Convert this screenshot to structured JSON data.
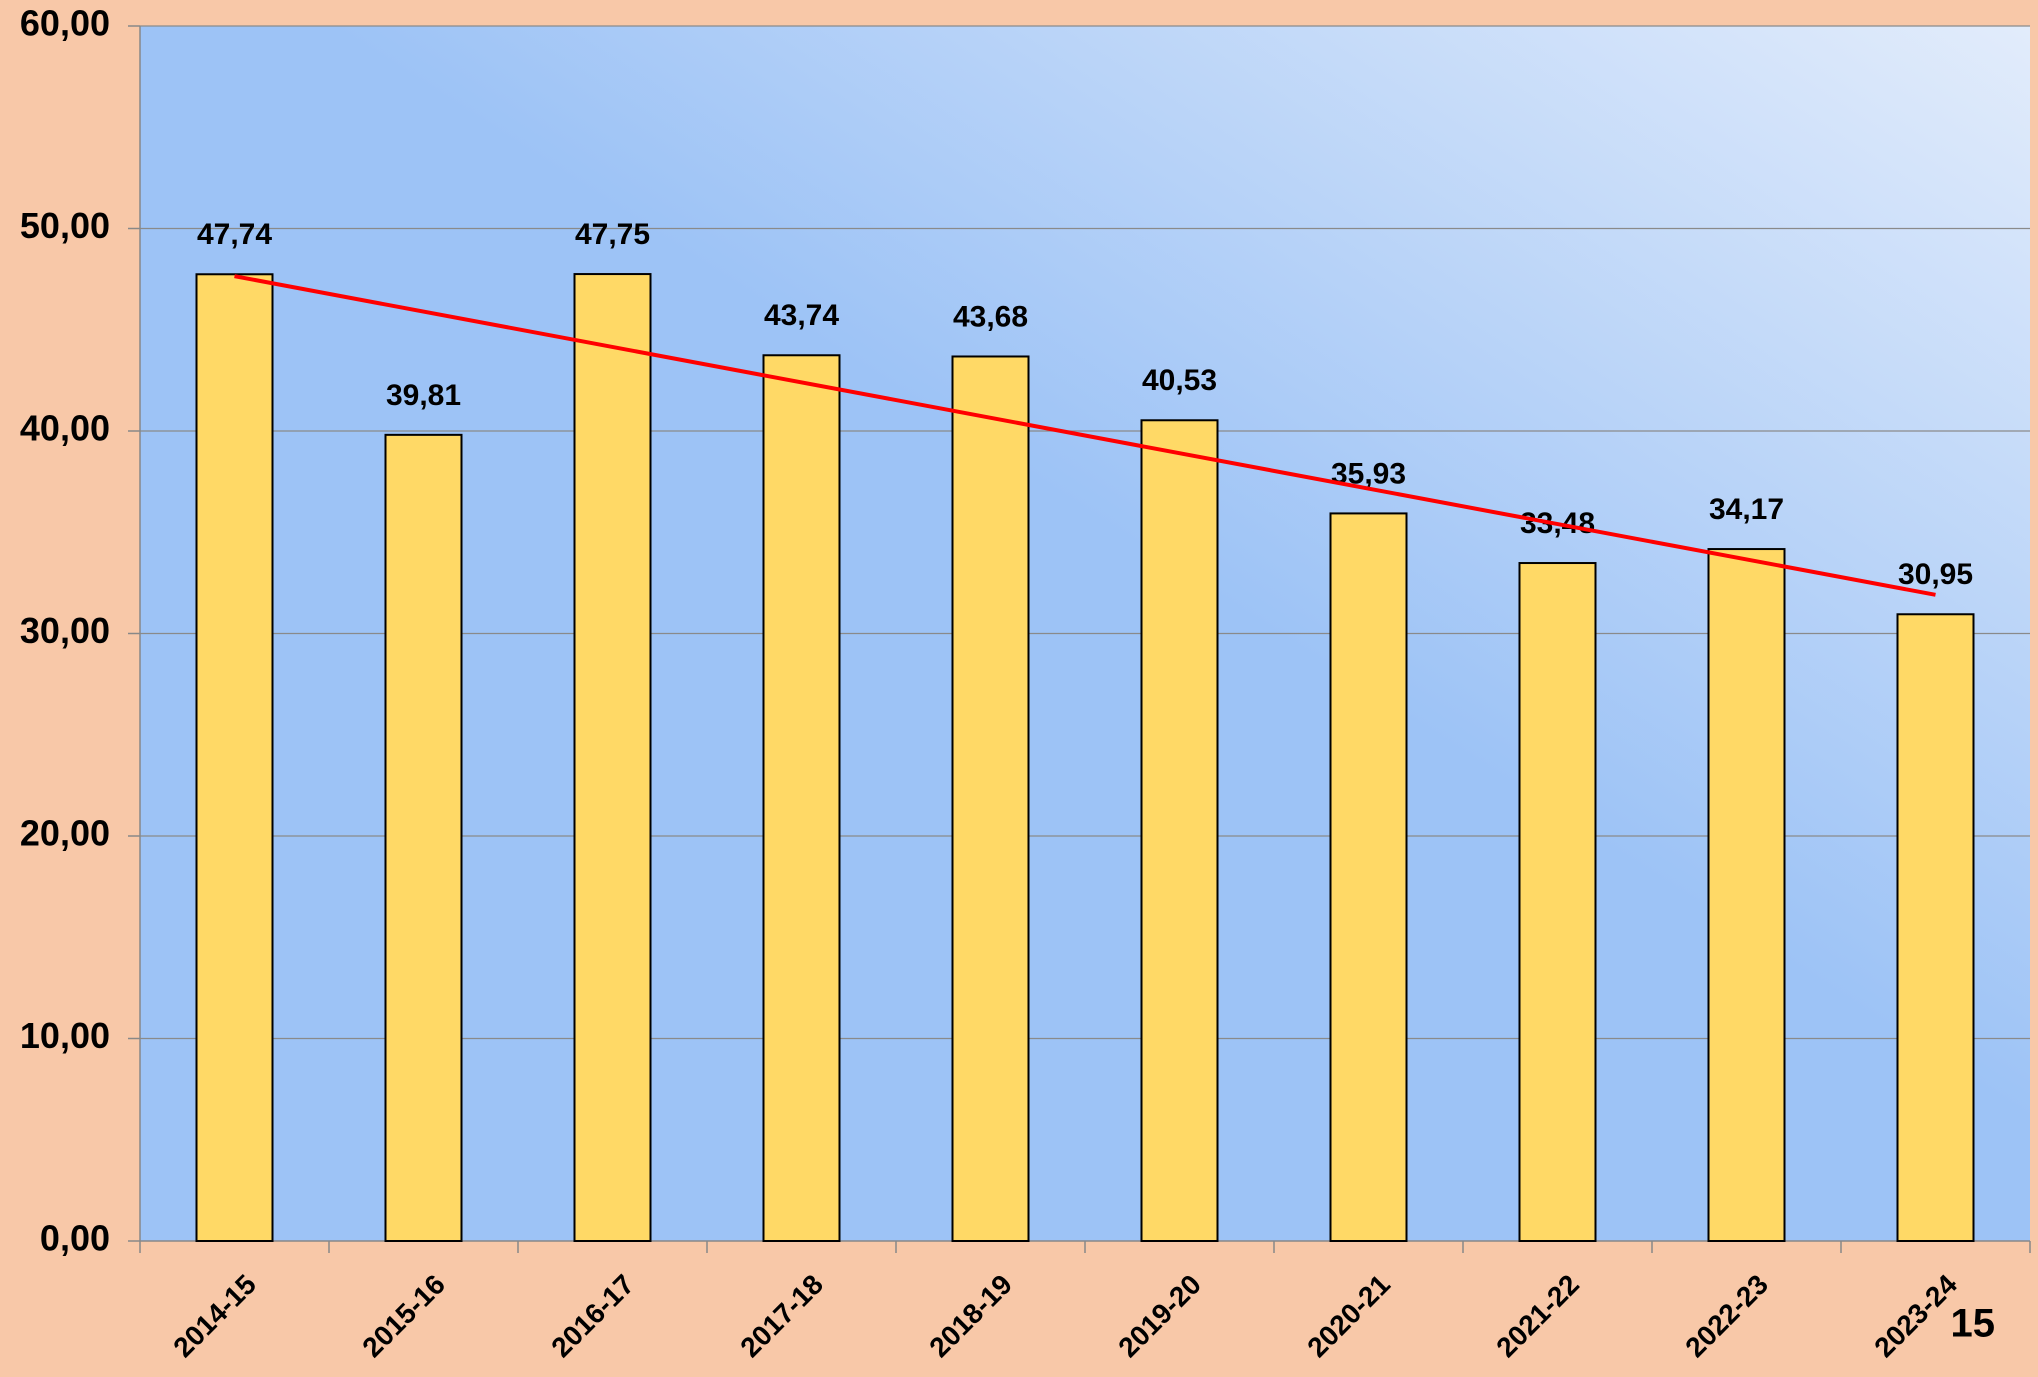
{
  "chart_data": {
    "type": "bar",
    "categories": [
      "2014-15",
      "2015-16",
      "2016-17",
      "2017-18",
      "2018-19",
      "2019-20",
      "2020-21",
      "2021-22",
      "2022-23",
      "2023-24"
    ],
    "values": [
      47.74,
      39.81,
      47.75,
      43.74,
      43.68,
      40.53,
      35.93,
      33.48,
      34.17,
      30.95
    ],
    "value_labels": [
      "47,74",
      "39,81",
      "47,75",
      "43,74",
      "43,68",
      "40,53",
      "35,93",
      "33,48",
      "34,17",
      "30,95"
    ],
    "color": "#ffd966",
    "trendline": {
      "type": "linear",
      "color": "#ff0000"
    },
    "ylim": [
      0,
      60
    ],
    "yticks": [
      {
        "value": 0,
        "label": "0,00"
      },
      {
        "value": 10,
        "label": "10,00"
      },
      {
        "value": 20,
        "label": "20,00"
      },
      {
        "value": 30,
        "label": "30,00"
      },
      {
        "value": 40,
        "label": "40,00"
      },
      {
        "value": 50,
        "label": "50,00"
      },
      {
        "value": 60,
        "label": "60,00"
      }
    ],
    "grid": true
  },
  "page_number": "15"
}
